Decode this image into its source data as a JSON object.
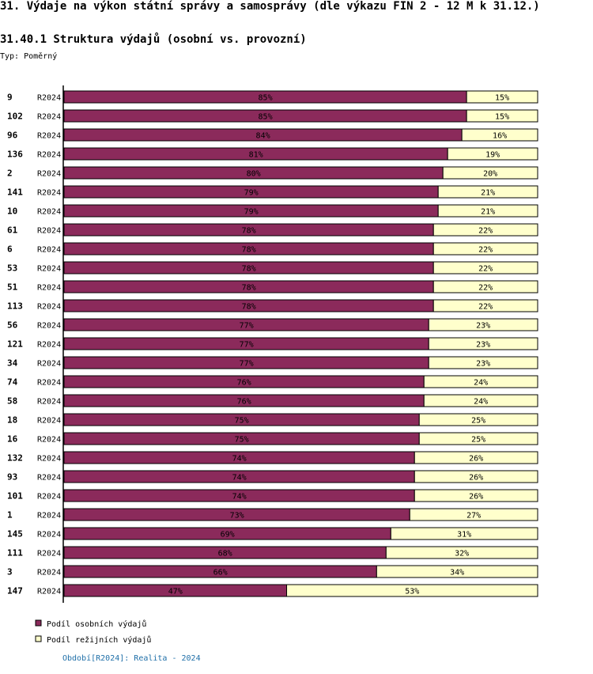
{
  "header": {
    "title": "31. Výdaje na výkon státní správy a samosprávy (dle výkazu FIN 2 - 12 M k 31.12.)"
  },
  "chart_data": {
    "type": "bar",
    "orientation": "horizontal",
    "stacked": true,
    "normalized_percent": true,
    "title": "31.40.1 Struktura výdajů (osobní vs. provozní)",
    "subtitle": "Typ: Poměrný",
    "categories": [
      "9",
      "102",
      "96",
      "136",
      "2",
      "141",
      "10",
      "61",
      "6",
      "53",
      "51",
      "113",
      "56",
      "121",
      "34",
      "74",
      "58",
      "18",
      "16",
      "132",
      "93",
      "101",
      "1",
      "145",
      "111",
      "3",
      "147"
    ],
    "row_label": "R2024",
    "series": [
      {
        "name": "Podíl osobních výdajů",
        "color": "#8b2a5b",
        "values": [
          85,
          85,
          84,
          81,
          80,
          79,
          79,
          78,
          78,
          78,
          78,
          78,
          77,
          77,
          77,
          76,
          76,
          75,
          75,
          74,
          74,
          74,
          73,
          69,
          68,
          66,
          47
        ]
      },
      {
        "name": "Podíl režijních výdajů",
        "color": "#ffffcc",
        "values": [
          15,
          15,
          16,
          19,
          20,
          21,
          21,
          22,
          22,
          22,
          22,
          22,
          23,
          23,
          23,
          24,
          24,
          25,
          25,
          26,
          26,
          26,
          27,
          31,
          32,
          34,
          53
        ]
      }
    ],
    "value_suffix": "%",
    "xlim": [
      0,
      100
    ],
    "legend_position": "bottom-left"
  },
  "footer": {
    "period_text": "Období[R2024]: Realita - 2024"
  }
}
